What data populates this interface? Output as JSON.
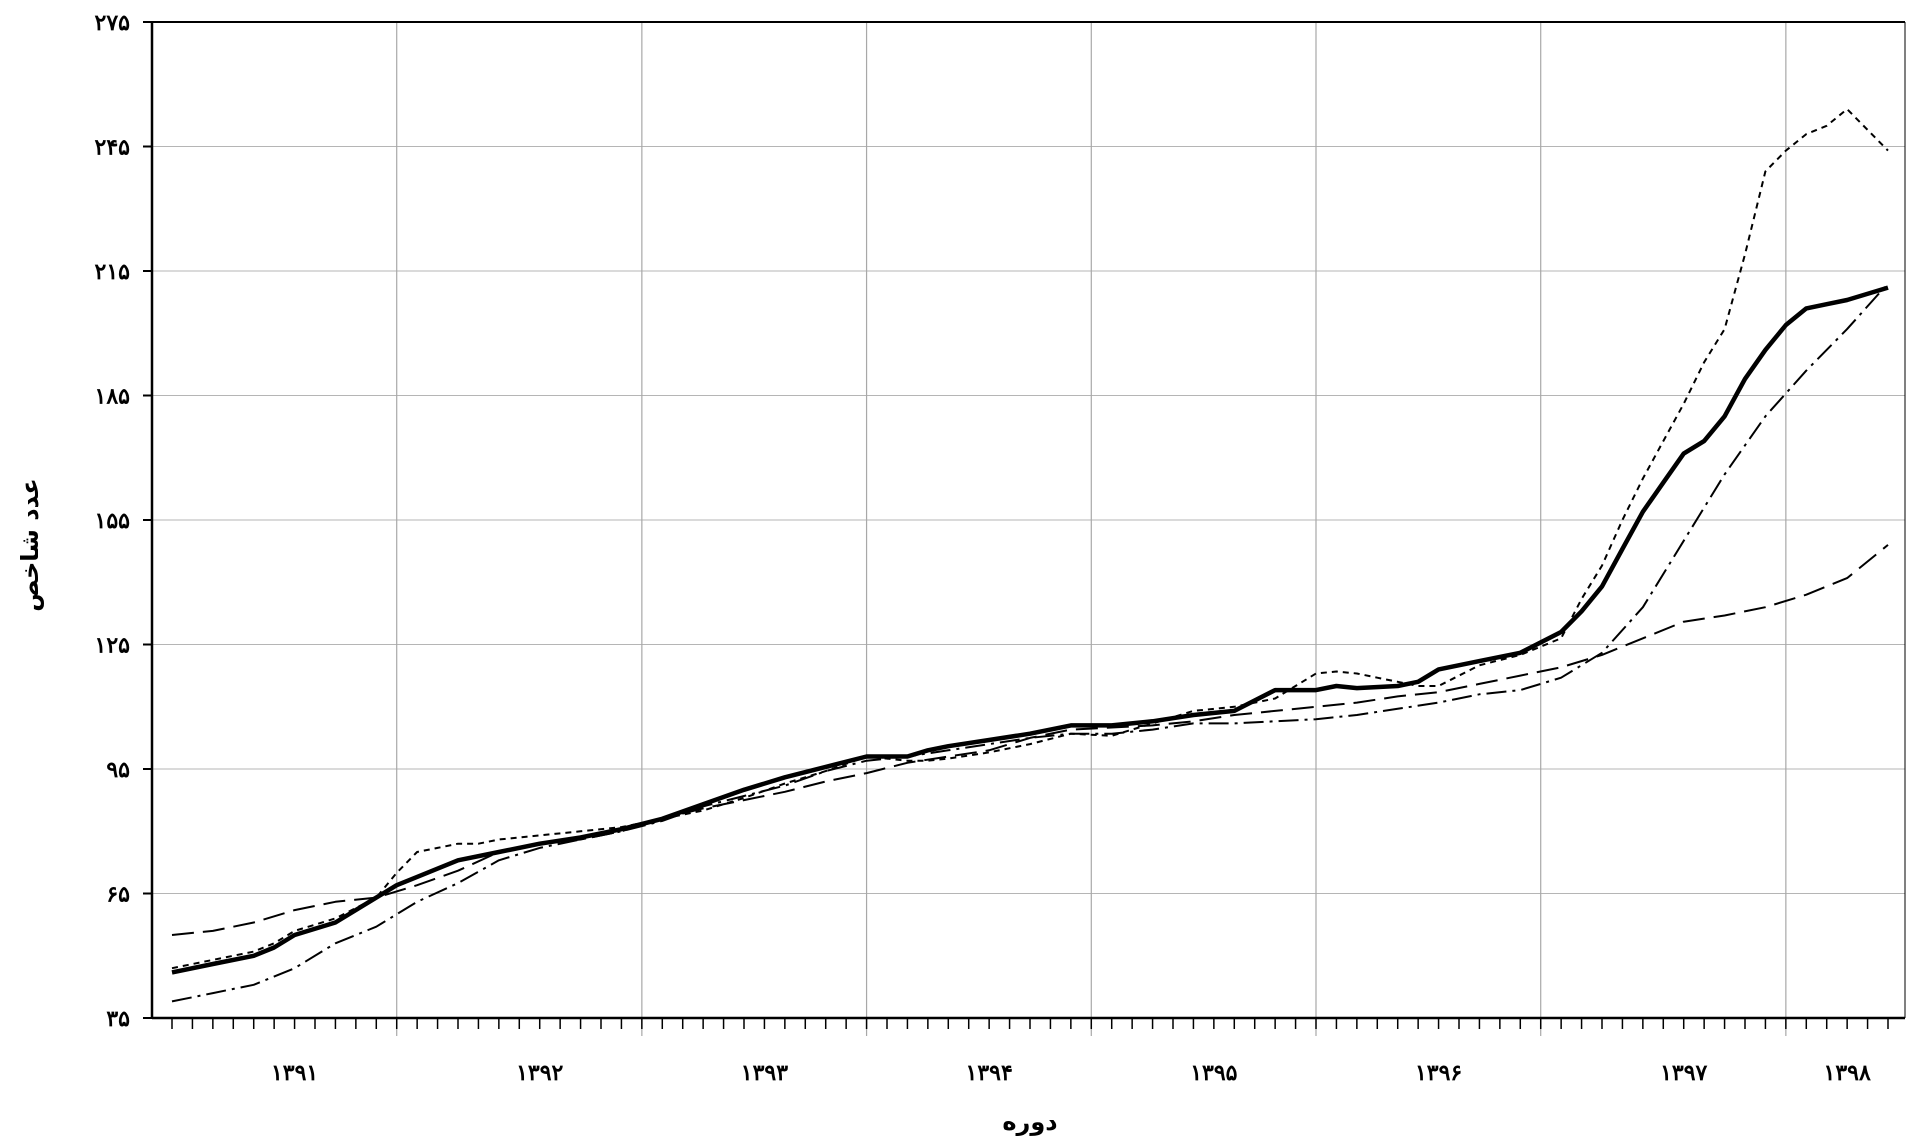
{
  "chart_data": {
    "type": "line",
    "title": "",
    "xlabel": "دوره",
    "ylabel": "عدد شاخص",
    "ylim": [
      35,
      275
    ],
    "yticks": [
      35,
      65,
      95,
      125,
      155,
      185,
      215,
      245,
      275
    ],
    "ytick_labels": [
      "۳۵",
      "۶۵",
      "۹۵",
      "۱۲۵",
      "۱۵۵",
      "۱۸۵",
      "۲۱۵",
      "۲۴۵",
      "۲۷۵"
    ],
    "x_range": [
      0,
      84
    ],
    "year_labels": [
      "۱۳۹۱",
      "۱۳۹۲",
      "۱۳۹۳",
      "۱۳۹۴",
      "۱۳۹۵",
      "۱۳۹۶",
      "۱۳۹۷",
      "۱۳۹۸"
    ],
    "year_label_pos": [
      6,
      18,
      29,
      40,
      51,
      62,
      74,
      82
    ],
    "year_gridlines": [
      11,
      23,
      34,
      45,
      56,
      67,
      79
    ],
    "grid": "vertical-and-horizontal",
    "series": [
      {
        "style": "solid-thick",
        "x": [
          0,
          2,
          4,
          5,
          6,
          8,
          10,
          11,
          12,
          14,
          16,
          18,
          20,
          22,
          24,
          26,
          28,
          30,
          32,
          34,
          36,
          37,
          38,
          40,
          42,
          44,
          46,
          48,
          50,
          52,
          54,
          56,
          57,
          58,
          60,
          61,
          62,
          64,
          66,
          68,
          69,
          70,
          71,
          72,
          73,
          74,
          75,
          76,
          77,
          78,
          79,
          80,
          81,
          82,
          84
        ],
        "y": [
          46,
          48,
          50,
          52,
          55,
          58,
          64,
          67,
          69,
          73,
          75,
          77,
          78.5,
          80.5,
          83,
          86.5,
          90,
          93,
          95.5,
          98,
          98,
          99.5,
          100.5,
          102,
          103.5,
          105.5,
          105.5,
          106.5,
          108,
          109,
          114,
          114,
          115,
          114.5,
          115,
          116,
          119,
          121,
          123,
          128,
          133,
          139,
          148,
          157,
          164,
          171,
          174,
          180,
          189,
          196,
          202,
          206,
          207,
          208,
          211
        ]
      },
      {
        "style": "short-dash",
        "x": [
          0,
          2,
          4,
          5,
          6,
          8,
          10,
          11,
          12,
          13,
          14,
          15,
          16,
          18,
          20,
          22,
          24,
          26,
          28,
          30,
          32,
          34,
          36,
          37,
          38,
          40,
          42,
          44,
          46,
          48,
          50,
          52,
          54,
          56,
          57,
          58,
          59,
          60,
          61,
          62,
          63,
          64,
          66,
          68,
          69,
          70,
          71,
          72,
          73,
          74,
          75,
          76,
          77,
          78,
          79,
          80,
          81,
          82,
          83,
          84
        ],
        "y": [
          47,
          49,
          51,
          53,
          56,
          59,
          64,
          70,
          75,
          76,
          77,
          77,
          78,
          79,
          80,
          81,
          83,
          85,
          88,
          91.5,
          94.5,
          98,
          97,
          97,
          97.5,
          99,
          101,
          103.5,
          103,
          106,
          109,
          110,
          112,
          118,
          118.5,
          118,
          117,
          116,
          115,
          115,
          117.5,
          120,
          122.5,
          126.5,
          136,
          144,
          155,
          165,
          174,
          183,
          193,
          201,
          219,
          239,
          244,
          248,
          250,
          254,
          249,
          244
        ]
      },
      {
        "style": "dash-dot",
        "x": [
          0,
          2,
          4,
          6,
          8,
          10,
          12,
          14,
          16,
          18,
          20,
          22,
          24,
          26,
          28,
          30,
          32,
          34,
          36,
          38,
          40,
          42,
          44,
          46,
          48,
          50,
          52,
          54,
          56,
          58,
          60,
          62,
          64,
          66,
          68,
          70,
          72,
          74,
          76,
          78,
          80,
          82,
          84
        ],
        "y": [
          39,
          41,
          43,
          47,
          53,
          57,
          63,
          67.5,
          73,
          76,
          78,
          80,
          82.5,
          86,
          88.5,
          91,
          94.5,
          97,
          98,
          99.5,
          101,
          102.5,
          103.5,
          103.5,
          104.5,
          106,
          106,
          106.5,
          107,
          108,
          109.5,
          111,
          113,
          114,
          117,
          123,
          134,
          150,
          166,
          180,
          191,
          201,
          212
        ]
      },
      {
        "style": "long-dash",
        "x": [
          0,
          2,
          4,
          6,
          8,
          10,
          12,
          14,
          16,
          18,
          20,
          22,
          24,
          26,
          28,
          30,
          32,
          34,
          36,
          38,
          40,
          42,
          44,
          46,
          48,
          50,
          52,
          54,
          56,
          58,
          60,
          62,
          64,
          66,
          68,
          70,
          72,
          74,
          76,
          78,
          80,
          82,
          84
        ],
        "y": [
          55,
          56,
          58,
          61,
          63,
          64,
          67,
          70.5,
          75,
          77,
          78,
          80,
          83,
          85.5,
          87.5,
          89.5,
          92,
          94,
          96.5,
          98,
          99.5,
          102.5,
          104.5,
          105,
          105.5,
          106.5,
          108,
          109,
          110,
          111,
          112.5,
          113.5,
          115.5,
          117.5,
          119.5,
          122.5,
          126.5,
          130.5,
          132,
          134,
          137,
          141,
          149
        ]
      }
    ]
  }
}
